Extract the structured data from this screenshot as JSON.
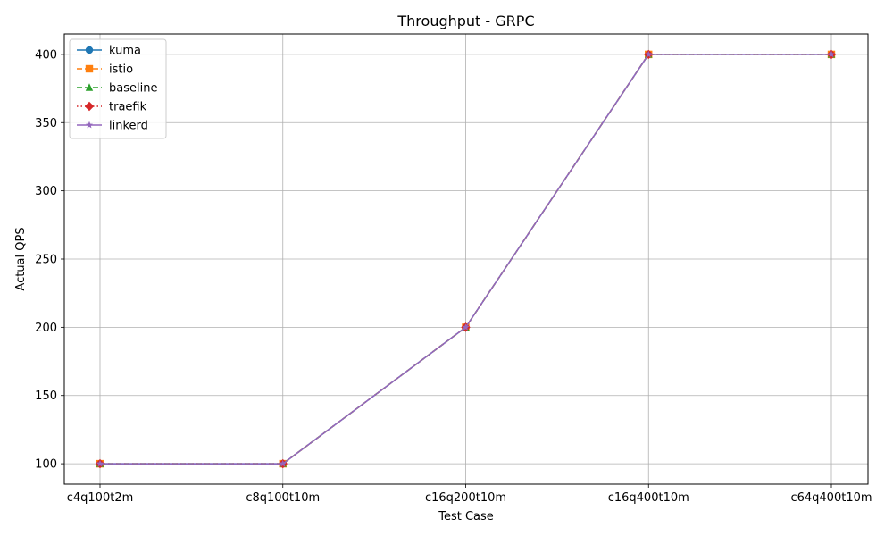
{
  "chart_data": {
    "type": "line",
    "title": "Throughput - GRPC",
    "xlabel": "Test Case",
    "ylabel": "Actual QPS",
    "categories": [
      "c4q100t2m",
      "c8q100t10m",
      "c16q200t10m",
      "c16q400t10m",
      "c64q400t10m"
    ],
    "ylim": [
      85,
      415
    ],
    "yticks": [
      100,
      150,
      200,
      250,
      300,
      350,
      400
    ],
    "grid": true,
    "legend_position": "top-left",
    "series": [
      {
        "name": "kuma",
        "values": [
          100,
          100,
          200,
          400,
          400
        ],
        "color": "#1f77b4",
        "marker": "circle",
        "dash": "solid"
      },
      {
        "name": "istio",
        "values": [
          100,
          100,
          200,
          400,
          400
        ],
        "color": "#ff7f0e",
        "marker": "square",
        "dash": "dashed"
      },
      {
        "name": "baseline",
        "values": [
          100,
          100,
          200,
          400,
          400
        ],
        "color": "#2ca02c",
        "marker": "triangle",
        "dash": "dashed"
      },
      {
        "name": "traefik",
        "values": [
          100,
          100,
          200,
          400,
          400
        ],
        "color": "#d62728",
        "marker": "diamond",
        "dash": "dotted"
      },
      {
        "name": "linkerd",
        "values": [
          100,
          100,
          200,
          400,
          400
        ],
        "color": "#9467bd",
        "marker": "star",
        "dash": "solid"
      }
    ]
  }
}
